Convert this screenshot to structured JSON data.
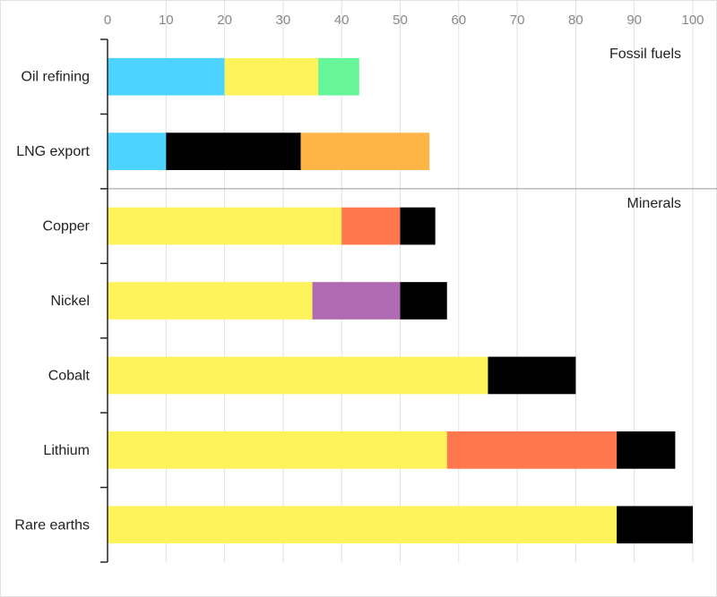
{
  "chart_data": {
    "type": "bar",
    "orientation": "horizontal",
    "stacked": true,
    "xlim": [
      0,
      100
    ],
    "x_ticks": [
      "0",
      "10",
      "20",
      "30",
      "40",
      "50",
      "60",
      "70",
      "80",
      "90",
      "100"
    ],
    "grid": true,
    "legend": "none",
    "groups": [
      {
        "label": "Fossil fuels",
        "categories": [
          {
            "label": "Oil refining",
            "segments": [
              {
                "value": 20,
                "color": "#4dd3ff"
              },
              {
                "value": 16,
                "color": "#fff35c"
              },
              {
                "value": 7,
                "color": "#66f598"
              }
            ]
          },
          {
            "label": "LNG export",
            "segments": [
              {
                "value": 10,
                "color": "#4dd3ff"
              },
              {
                "value": 23,
                "color": "#000000"
              },
              {
                "value": 22,
                "color": "#ffb545"
              }
            ]
          }
        ]
      },
      {
        "label": "Minerals",
        "categories": [
          {
            "label": "Copper",
            "segments": [
              {
                "value": 40,
                "color": "#fff35c"
              },
              {
                "value": 10,
                "color": "#ff784d"
              },
              {
                "value": 6,
                "color": "#000000"
              }
            ]
          },
          {
            "label": "Nickel",
            "segments": [
              {
                "value": 35,
                "color": "#fff35c"
              },
              {
                "value": 15,
                "color": "#b06ab3"
              },
              {
                "value": 8,
                "color": "#000000"
              }
            ]
          },
          {
            "label": "Cobalt",
            "segments": [
              {
                "value": 65,
                "color": "#fff35c"
              },
              {
                "value": 15,
                "color": "#000000"
              }
            ]
          },
          {
            "label": "Lithium",
            "segments": [
              {
                "value": 58,
                "color": "#fff35c"
              },
              {
                "value": 29,
                "color": "#ff784d"
              },
              {
                "value": 10,
                "color": "#000000"
              }
            ]
          },
          {
            "label": "Rare earths",
            "segments": [
              {
                "value": 87,
                "color": "#fff35c"
              },
              {
                "value": 13,
                "color": "#000000"
              }
            ]
          }
        ]
      }
    ]
  }
}
